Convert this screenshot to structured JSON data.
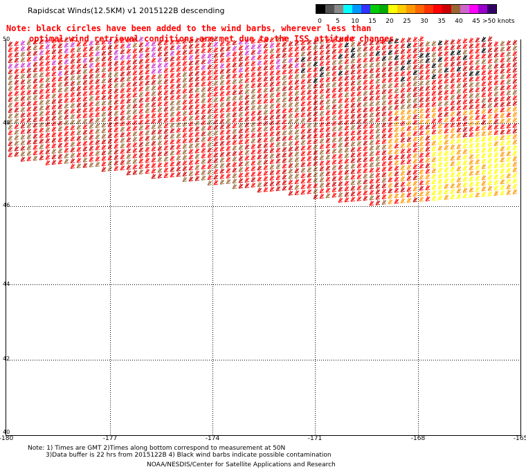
{
  "header": {
    "title": "Rapidscat Winds(12.5KM) v1 2015122B descending"
  },
  "notice": {
    "line1": "Note: black circles have been added to the wind barbs, wherever less than",
    "line2": "optimal wind retrieval conditions are met due to the ISS attitude changes."
  },
  "legend": {
    "labels": [
      "0",
      "5",
      "10",
      "15",
      "20",
      "25",
      "30",
      "35",
      "40",
      "45",
      ">50 knots"
    ],
    "colors": [
      "#000000",
      "#555555",
      "#8a8a8a",
      "#00ffff",
      "#0099ff",
      "#3333ff",
      "#00cc00",
      "#00aa00",
      "#ffff00",
      "#ffcc00",
      "#ff9900",
      "#ff6600",
      "#ff3300",
      "#ff0000",
      "#cc0000",
      "#996633",
      "#cc66cc",
      "#ff00ff",
      "#9900cc",
      "#330066"
    ]
  },
  "map": {
    "lon_labels": [
      "-180",
      "-177",
      "-174",
      "-171",
      "-168",
      "-165"
    ],
    "lat_labels": [
      "50",
      "48",
      "46",
      "44",
      "42",
      "40"
    ],
    "grid_color": "#000000",
    "swath_colors": {
      "dominant": "#ff0000",
      "dark_red": "#cc0000",
      "brown": "#996633",
      "orange": "#ff9900",
      "yellow": "#ffff00",
      "green": "#00aa00",
      "magenta": "#cc33cc",
      "black": "#000000"
    }
  },
  "footer": {
    "line1": "Note: 1) Times are GMT 2)Times along bottom correspond to measurement at 50N",
    "line2": "3)Data buffer is 22 hrs from 2015122B 4) Black wind barbs indicate possible contamination",
    "line3": "NOAA/NESDIS/Center for Satellite Applications and Research"
  }
}
